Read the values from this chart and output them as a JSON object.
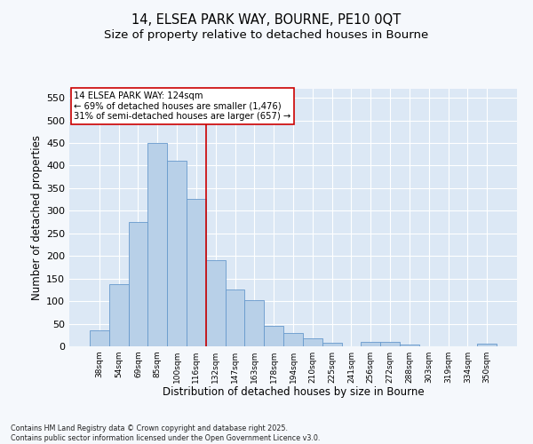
{
  "title1": "14, ELSEA PARK WAY, BOURNE, PE10 0QT",
  "title2": "Size of property relative to detached houses in Bourne",
  "xlabel": "Distribution of detached houses by size in Bourne",
  "ylabel": "Number of detached properties",
  "categories": [
    "38sqm",
    "54sqm",
    "69sqm",
    "85sqm",
    "100sqm",
    "116sqm",
    "132sqm",
    "147sqm",
    "163sqm",
    "178sqm",
    "194sqm",
    "210sqm",
    "225sqm",
    "241sqm",
    "256sqm",
    "272sqm",
    "288sqm",
    "303sqm",
    "319sqm",
    "334sqm",
    "350sqm"
  ],
  "values": [
    35,
    137,
    275,
    450,
    410,
    327,
    190,
    125,
    102,
    46,
    30,
    18,
    8,
    0,
    9,
    9,
    3,
    0,
    0,
    0,
    5
  ],
  "bar_color": "#b8d0e8",
  "bar_edge_color": "#6699cc",
  "vline_x": 5.5,
  "vline_color": "#cc0000",
  "annotation_text": "14 ELSEA PARK WAY: 124sqm\n← 69% of detached houses are smaller (1,476)\n31% of semi-detached houses are larger (657) →",
  "annotation_box_color": "#ffffff",
  "annotation_box_edge": "#cc0000",
  "ylim": [
    0,
    570
  ],
  "yticks": [
    0,
    50,
    100,
    150,
    200,
    250,
    300,
    350,
    400,
    450,
    500,
    550
  ],
  "plot_bg_color": "#dce8f5",
  "fig_bg_color": "#f5f8fc",
  "footer": "Contains HM Land Registry data © Crown copyright and database right 2025.\nContains public sector information licensed under the Open Government Licence v3.0.",
  "title_fontsize": 10.5,
  "subtitle_fontsize": 9.5
}
